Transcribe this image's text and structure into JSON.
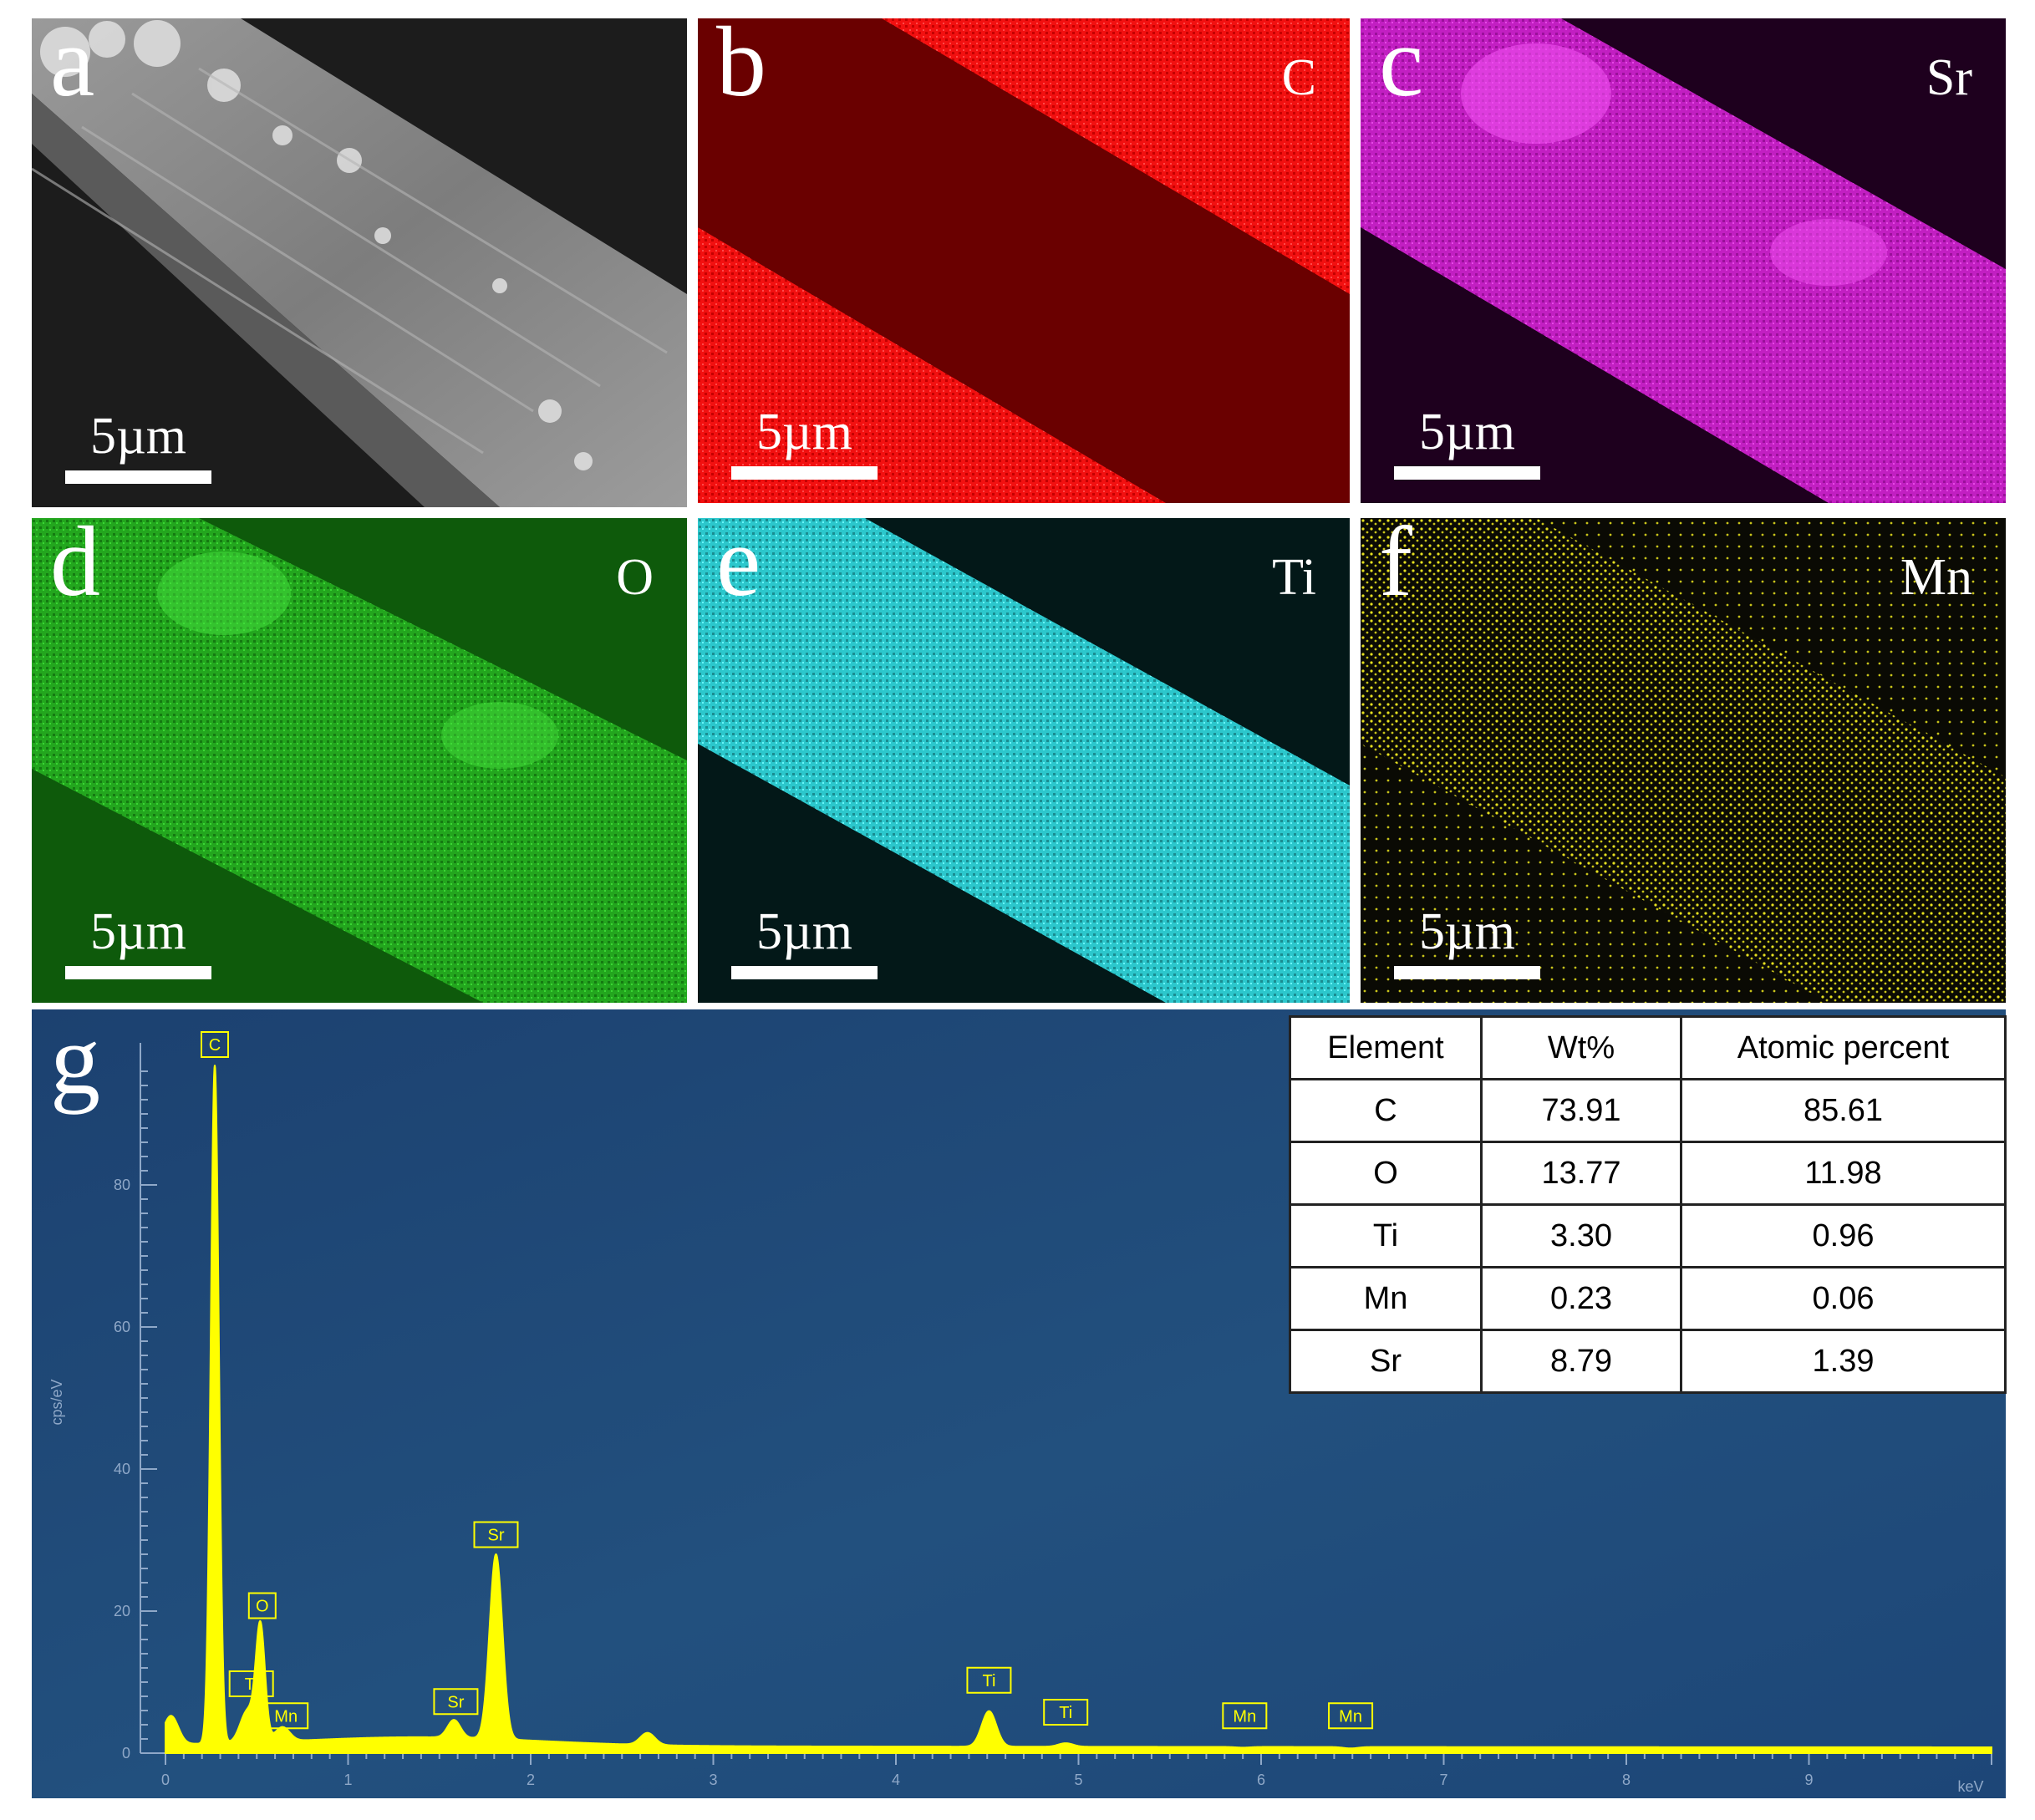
{
  "panels": [
    {
      "id": "a",
      "letter": "a",
      "element": "",
      "scale_bar": "5µm"
    },
    {
      "id": "b",
      "letter": "b",
      "element": "C",
      "scale_bar": "5µm",
      "color": "#ff1a1a"
    },
    {
      "id": "c",
      "letter": "c",
      "element": "Sr",
      "scale_bar": "5µm",
      "color": "#d62ad6"
    },
    {
      "id": "d",
      "letter": "d",
      "element": "O",
      "scale_bar": "5µm",
      "color": "#2fd12a"
    },
    {
      "id": "e",
      "letter": "e",
      "element": "Ti",
      "scale_bar": "5µm",
      "color": "#36e6ec"
    },
    {
      "id": "f",
      "letter": "f",
      "element": "Mn",
      "scale_bar": "5µm",
      "color": "#e6e020"
    }
  ],
  "spectrum_panel": {
    "letter": "g"
  },
  "chart_data": {
    "type": "line",
    "title": "",
    "xlabel": "keV",
    "ylabel": "cps/eV",
    "xlim": [
      0,
      10
    ],
    "ylim": [
      0,
      100
    ],
    "x_ticks": [
      0,
      1,
      2,
      3,
      4,
      5,
      6,
      7,
      8,
      9
    ],
    "y_ticks": [
      0,
      20,
      40,
      60,
      80
    ],
    "line_color": "#ffff00",
    "peaks": [
      {
        "label": "",
        "x": 0.03,
        "y": 4.5
      },
      {
        "label": "C",
        "x": 0.27,
        "y": 96
      },
      {
        "label": "O",
        "x": 0.52,
        "y": 16.5
      },
      {
        "label": "Ti",
        "x": 0.45,
        "y": 5
      },
      {
        "label": "Mn",
        "x": 0.64,
        "y": 2.5
      },
      {
        "label": "Sr",
        "x": 1.58,
        "y": 3
      },
      {
        "label": "Sr",
        "x": 1.81,
        "y": 26.5
      },
      {
        "label": "",
        "x": 2.64,
        "y": 2.2
      },
      {
        "label": "Ti",
        "x": 4.51,
        "y": 5.5
      },
      {
        "label": "Ti",
        "x": 4.93,
        "y": 1.0
      },
      {
        "label": "Mn",
        "x": 5.9,
        "y": 0.4
      },
      {
        "label": "Mn",
        "x": 6.49,
        "y": 0.3
      }
    ],
    "peak_labels": [
      {
        "text": "C",
        "x": 0.27,
        "y": 98
      },
      {
        "text": "O",
        "x": 0.53,
        "y": 19
      },
      {
        "text": "Ti",
        "x": 0.47,
        "y": 8
      },
      {
        "text": "Mn",
        "x": 0.66,
        "y": 3.5
      },
      {
        "text": "Sr",
        "x": 1.59,
        "y": 5.5
      },
      {
        "text": "Sr",
        "x": 1.81,
        "y": 29
      },
      {
        "text": "Ti",
        "x": 4.51,
        "y": 8.5
      },
      {
        "text": "Ti",
        "x": 4.93,
        "y": 4
      },
      {
        "text": "Mn",
        "x": 5.91,
        "y": 3.5
      },
      {
        "text": "Mn",
        "x": 6.49,
        "y": 3.5
      }
    ]
  },
  "composition_table": {
    "headers": [
      "Element",
      "Wt%",
      "Atomic percent"
    ],
    "rows": [
      [
        "C",
        "73.91",
        "85.61"
      ],
      [
        "O",
        "13.77",
        "11.98"
      ],
      [
        "Ti",
        "3.30",
        "0.96"
      ],
      [
        "Mn",
        "0.23",
        "0.06"
      ],
      [
        "Sr",
        "8.79",
        "1.39"
      ]
    ]
  }
}
